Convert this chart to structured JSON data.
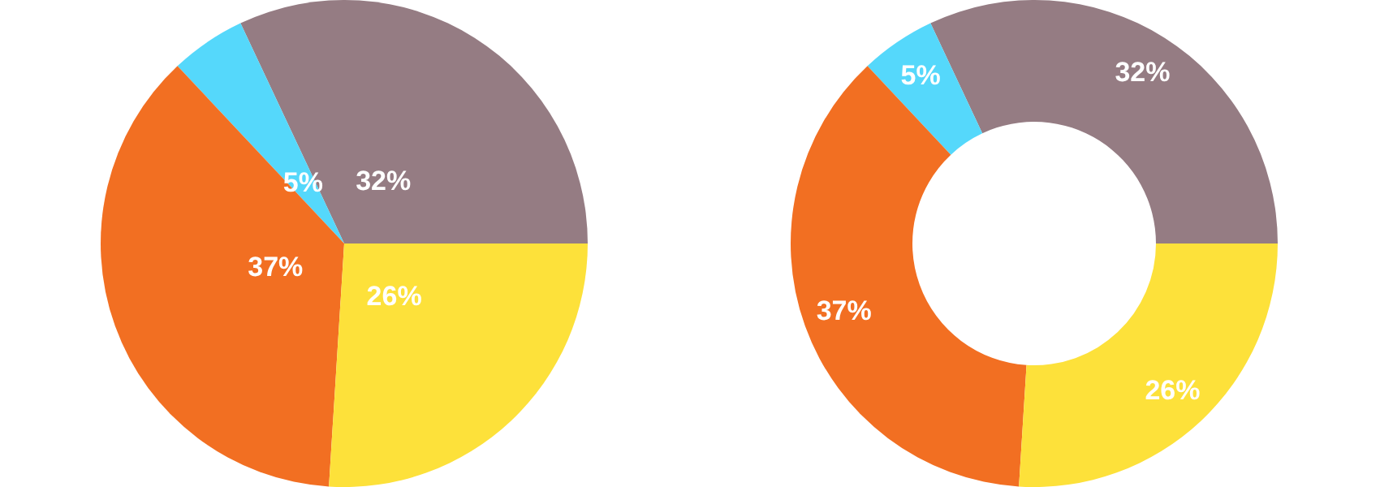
{
  "chart_data": [
    {
      "type": "pie",
      "categories": [
        null,
        null,
        null,
        null
      ],
      "values": [
        32,
        5,
        37,
        26
      ],
      "colors": [
        "#957c83",
        "#55d8fb",
        "#f26f22",
        "#fde13a"
      ],
      "value_labels": [
        "32%",
        "5%",
        "37%",
        "26%"
      ]
    },
    {
      "type": "donut",
      "categories": [
        null,
        null,
        null,
        null
      ],
      "values": [
        32,
        5,
        37,
        26
      ],
      "colors": [
        "#957c83",
        "#55d8fb",
        "#f26f22",
        "#fde13a"
      ],
      "value_labels": [
        "32%",
        "5%",
        "37%",
        "26%"
      ]
    }
  ]
}
